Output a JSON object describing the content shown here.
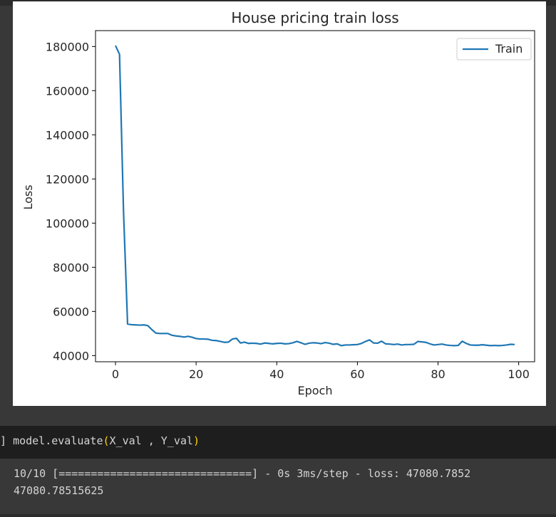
{
  "notebook": {
    "code_cell": {
      "prompt": "]",
      "function": "model.evaluate",
      "open_paren": "(",
      "args": "X_val , Y_val",
      "close_paren": ")"
    },
    "output": {
      "line1": "10/10 [==============================] - 0s 3ms/step - loss: 47080.7852",
      "line2": "47080.78515625"
    }
  },
  "chart_data": {
    "type": "line",
    "title": "House pricing train loss",
    "xlabel": "Epoch",
    "ylabel": "Loss",
    "xlim": [
      -4.95,
      103.95
    ],
    "ylim": [
      37200,
      187200
    ],
    "xticks": [
      0,
      20,
      40,
      60,
      80,
      100
    ],
    "yticks": [
      40000,
      60000,
      80000,
      100000,
      120000,
      140000,
      160000,
      180000
    ],
    "xticklabels": [
      "0",
      "20",
      "40",
      "60",
      "80",
      "100"
    ],
    "yticklabels": [
      "40000",
      "60000",
      "80000",
      "100000",
      "120000",
      "140000",
      "160000",
      "180000"
    ],
    "grid": false,
    "legend_position": "top-right",
    "series": [
      {
        "name": "Train",
        "color": "#1f77b4",
        "x": [
          0,
          1,
          2,
          3,
          4,
          5,
          6,
          7,
          8,
          9,
          10,
          11,
          12,
          13,
          14,
          15,
          16,
          17,
          18,
          19,
          20,
          21,
          22,
          23,
          24,
          25,
          26,
          27,
          28,
          29,
          30,
          31,
          32,
          33,
          34,
          35,
          36,
          37,
          38,
          39,
          40,
          41,
          42,
          43,
          44,
          45,
          46,
          47,
          48,
          49,
          50,
          51,
          52,
          53,
          54,
          55,
          56,
          57,
          58,
          59,
          60,
          61,
          62,
          63,
          64,
          65,
          66,
          67,
          68,
          69,
          70,
          71,
          72,
          73,
          74,
          75,
          76,
          77,
          78,
          79,
          80,
          81,
          82,
          83,
          84,
          85,
          86,
          87,
          88,
          89,
          90,
          91,
          92,
          93,
          94,
          95,
          96,
          97,
          98,
          99
        ],
        "values": [
          180400,
          176500,
          105000,
          54300,
          54000,
          53900,
          53800,
          53900,
          53600,
          51800,
          50200,
          50000,
          50000,
          50000,
          49200,
          48900,
          48700,
          48400,
          48700,
          48300,
          47700,
          47500,
          47500,
          47400,
          46900,
          46800,
          46400,
          46000,
          46100,
          47500,
          47800,
          45700,
          46100,
          45500,
          45600,
          45500,
          45200,
          45700,
          45500,
          45300,
          45500,
          45600,
          45300,
          45400,
          45800,
          46400,
          45800,
          45100,
          45600,
          45800,
          45700,
          45400,
          45900,
          45600,
          45100,
          45300,
          44500,
          44800,
          44800,
          44900,
          45000,
          45500,
          46400,
          47100,
          45700,
          45600,
          46500,
          45300,
          45200,
          45000,
          45200,
          44800,
          45000,
          45000,
          45100,
          46400,
          46200,
          46000,
          45300,
          44800,
          45000,
          45200,
          44800,
          44600,
          44500,
          44600,
          46500,
          45500,
          44800,
          44700,
          44700,
          44900,
          44700,
          44500,
          44600,
          44500,
          44600,
          44800,
          45100,
          45000
        ]
      }
    ]
  }
}
